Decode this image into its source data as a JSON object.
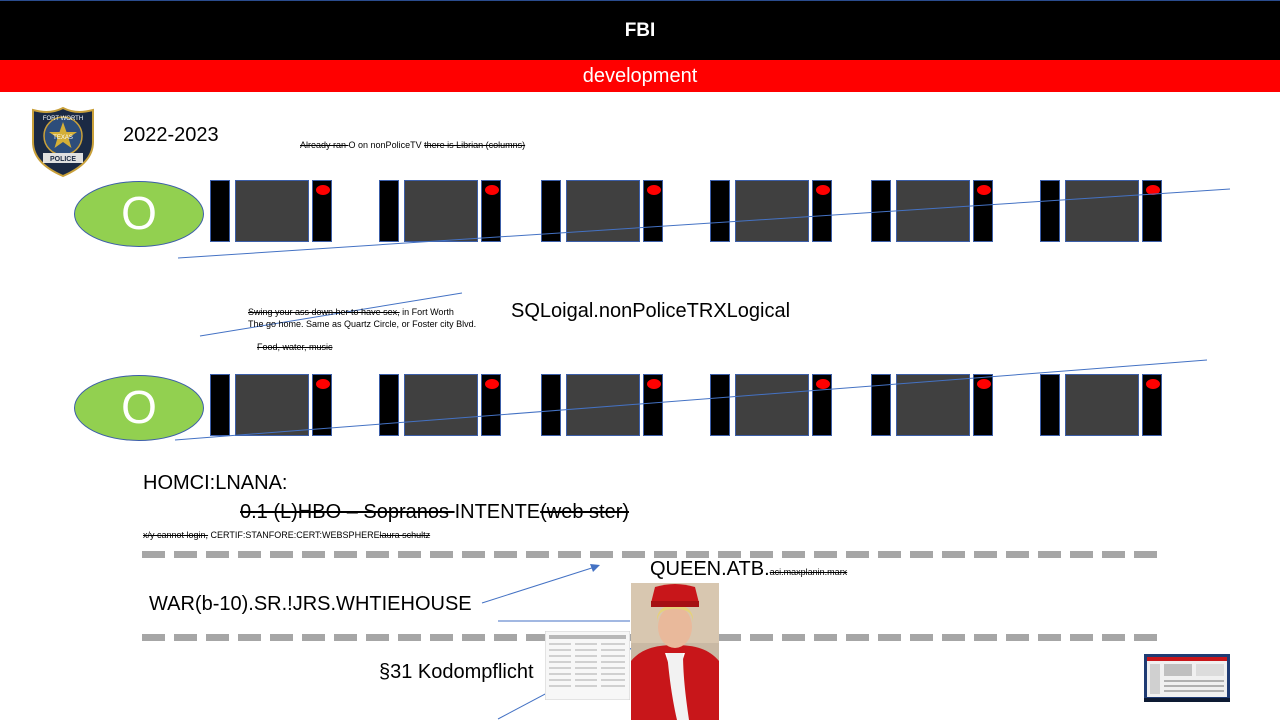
{
  "header": {
    "title": "FBI",
    "subtitle": "development"
  },
  "badge": {
    "alt": "Fort Worth Texas Police badge",
    "text_top": "FORT WORTH",
    "text_mid": "TEXAS",
    "text_bottom": "POLICE"
  },
  "year": "2022-2023",
  "note_top": {
    "struck_a": "Already ran ",
    "plain": "O on nonPoliceTV ",
    "struck_b": "there is Librian (columns)"
  },
  "train_1": {
    "engine_label": "O"
  },
  "train_2": {
    "engine_label": "O"
  },
  "note_mid": {
    "line1_struck": "Swing your ass down her to have sex,",
    "line1_plain": " in Fort Worth",
    "line2": "The go home. Same as Quartz Circle, or Foster city Blvd.",
    "line3_struck": "Food, water, music"
  },
  "sql_label": "SQLoigal.nonPoliceTRXLogical",
  "homci": "HOMCI:LNANA:",
  "hbo_line": {
    "struck": "0.1 (L)HBO – Sopranos ",
    "plain": " INTENTE",
    "struck2": "(web ster)"
  },
  "cert_line": {
    "struck": "x/y cannot login,",
    "plain": " CERTIF:STANFORE:CERT:WEBSPHERE",
    "struck2": "laura schultz"
  },
  "queen": {
    "main": "QUEEN.ATB.",
    "small_struck": "aci.maxplanin.marx"
  },
  "war_label": "WAR(b-10).SR.!JRS.WHTIEHOUSE",
  "kodom_label": "§31 Kodompflicht",
  "colors": {
    "header_bg": "#000000",
    "subheader_bg": "#ff0000",
    "engine": "#92d050",
    "line": "#4472c4",
    "dash": "#a6a6a6"
  }
}
